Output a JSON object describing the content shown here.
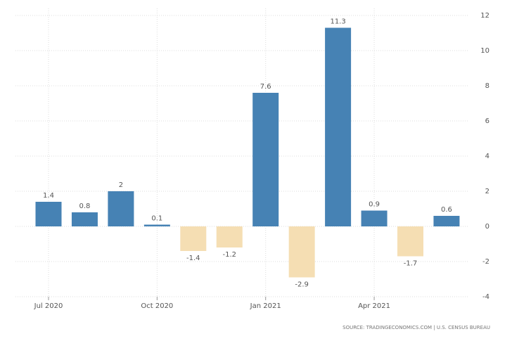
{
  "chart_data": {
    "type": "bar",
    "categories": [
      "Jul 2020",
      null,
      null,
      "Oct 2020",
      null,
      null,
      "Jan 2021",
      null,
      null,
      "Apr 2021",
      null,
      null
    ],
    "values": [
      1.4,
      0.8,
      2,
      0.1,
      -1.4,
      -1.2,
      7.6,
      -2.9,
      11.3,
      0.9,
      -1.7,
      0.6
    ],
    "color": "#4682b4",
    "negative_color": "#f5deb3",
    "ylim": [
      -4,
      12
    ],
    "yticks": [
      -4,
      -2,
      0,
      2,
      4,
      6,
      8,
      10,
      12
    ],
    "grid": true,
    "source": "SOURCE: TRADINGECONOMICS.COM | U.S. CENSUS BUREAU"
  }
}
